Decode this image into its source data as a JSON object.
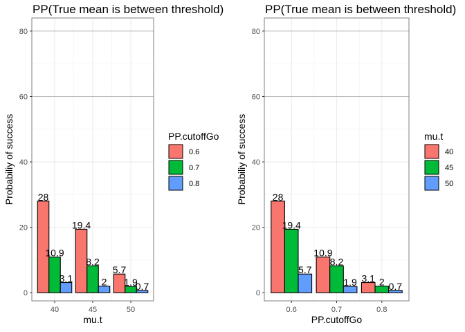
{
  "colors": {
    "series_1": "#F8766D",
    "series_2": "#00BA38",
    "series_3": "#619CFF"
  },
  "chart_data": [
    {
      "type": "bar",
      "title": "PP(True mean is between threshold)",
      "xlabel": "mu.t",
      "ylabel": "Probabiliy of success",
      "categories": [
        "40",
        "45",
        "50"
      ],
      "legend_title": "PP.cutoffGo",
      "series": [
        {
          "name": "0.6",
          "values": [
            28,
            19.4,
            5.7
          ],
          "labels": [
            "28",
            "19.4",
            "5.7"
          ]
        },
        {
          "name": "0.7",
          "values": [
            10.9,
            8.2,
            1.9
          ],
          "labels": [
            "10.9",
            "8.2",
            "1.9"
          ]
        },
        {
          "name": "0.8",
          "values": [
            3.1,
            2,
            0.7
          ],
          "labels": [
            "3.1",
            "2",
            "0.7"
          ]
        }
      ],
      "ylim": [
        -2.5,
        84
      ],
      "yticks": [
        0,
        20,
        40,
        60,
        80
      ],
      "grid": true,
      "legend_position": "right"
    },
    {
      "type": "bar",
      "title": "PP(True mean is between threshold)",
      "xlabel": "PP.cutoffGo",
      "ylabel": "Probabiliy of success",
      "categories": [
        "0.6",
        "0.7",
        "0.8"
      ],
      "legend_title": "mu.t",
      "series": [
        {
          "name": "40",
          "values": [
            28,
            10.9,
            3.1
          ],
          "labels": [
            "28",
            "10.9",
            "3.1"
          ]
        },
        {
          "name": "45",
          "values": [
            19.4,
            8.2,
            2
          ],
          "labels": [
            "19.4",
            "8.2",
            "2"
          ]
        },
        {
          "name": "50",
          "values": [
            5.7,
            1.9,
            0.7
          ],
          "labels": [
            "5.7",
            "1.9",
            "0.7"
          ]
        }
      ],
      "ylim": [
        -2.5,
        84
      ],
      "yticks": [
        0,
        20,
        40,
        60,
        80
      ],
      "grid": true,
      "legend_position": "right"
    }
  ]
}
